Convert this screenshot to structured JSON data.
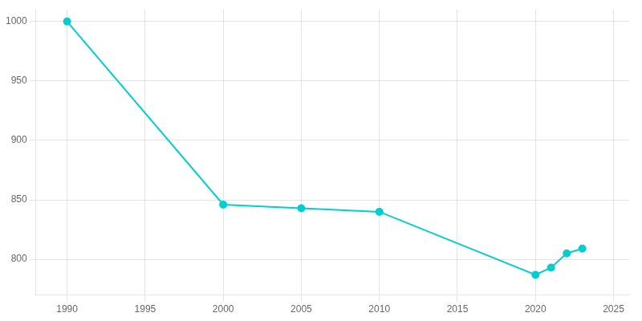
{
  "chart_data": {
    "type": "line",
    "x": [
      1990,
      2000,
      2005,
      2010,
      2020,
      2021,
      2022,
      2023
    ],
    "values": [
      1000,
      846,
      843,
      840,
      787,
      793,
      805,
      809
    ],
    "color": "#00CED1",
    "marker": "circle",
    "xlim": [
      1988,
      2026
    ],
    "xticks": [
      1990,
      1995,
      2000,
      2005,
      2010,
      2015,
      2020,
      2025
    ],
    "ylim": [
      770,
      1010
    ],
    "yticks": [
      800,
      850,
      900,
      950,
      1000
    ],
    "grid": true
  }
}
